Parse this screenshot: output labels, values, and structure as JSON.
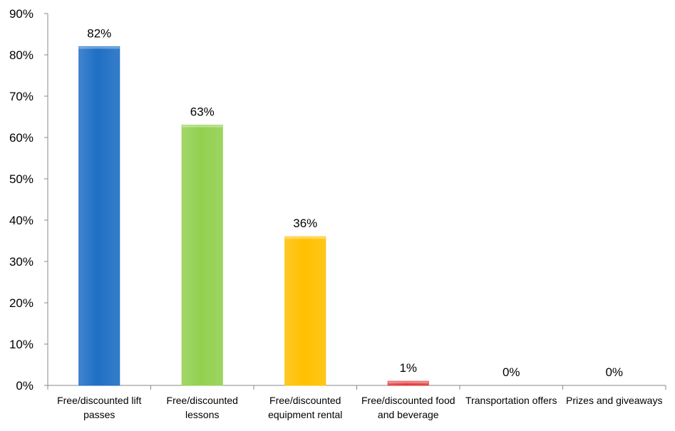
{
  "chart_data": {
    "type": "bar",
    "title": "",
    "xlabel": "",
    "ylabel": "",
    "ylim": [
      0,
      90
    ],
    "yticks": [
      0,
      10,
      20,
      30,
      40,
      50,
      60,
      70,
      80,
      90
    ],
    "ytick_labels": [
      "0%",
      "10%",
      "20%",
      "30%",
      "40%",
      "50%",
      "60%",
      "70%",
      "80%",
      "90%"
    ],
    "grid": false,
    "legend": "none",
    "categories": [
      [
        "Free/discounted lift",
        "passes"
      ],
      [
        "Free/discounted",
        "lessons"
      ],
      [
        "Free/discounted",
        "equipment rental"
      ],
      [
        "Free/discounted food",
        "and beverage"
      ],
      [
        "Transportation offers"
      ],
      [
        "Prizes and giveaways"
      ]
    ],
    "values": [
      82,
      63,
      36,
      1,
      0,
      0
    ],
    "data_labels": [
      "82%",
      "63%",
      "36%",
      "1%",
      "0%",
      "0%"
    ],
    "bar_colors": [
      "#1f6fc5",
      "#92d050",
      "#ffc000",
      "#e23b3b",
      "#a6a6a6",
      "#a6a6a6"
    ]
  }
}
